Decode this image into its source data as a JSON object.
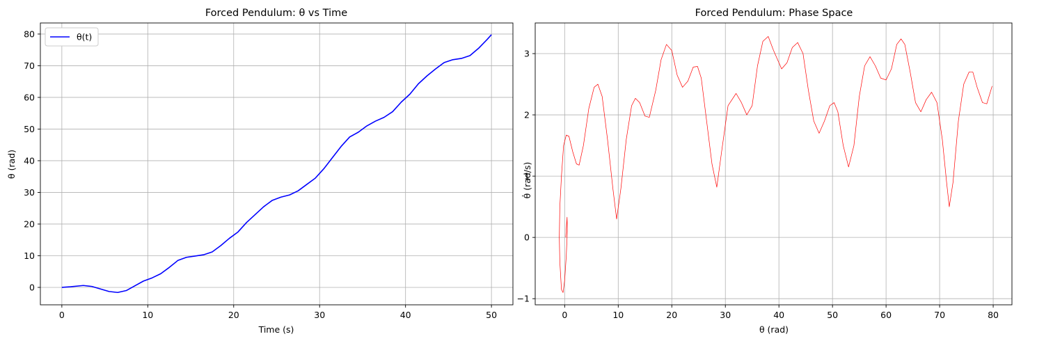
{
  "chart_data": [
    {
      "type": "line",
      "title": "Forced Pendulum: θ vs Time",
      "xlabel": "Time (s)",
      "ylabel": "θ (rad)",
      "xlim": [
        -2.5,
        52.5
      ],
      "ylim": [
        -5.5,
        83.5
      ],
      "xticks": [
        0,
        10,
        20,
        30,
        40,
        50
      ],
      "yticks": [
        0,
        10,
        20,
        30,
        40,
        50,
        60,
        70,
        80
      ],
      "grid": true,
      "legend": "top-left",
      "series": [
        {
          "name": "θ(t)",
          "color": "#0000ff",
          "points": [
            [
              0,
              0
            ],
            [
              1,
              0.2
            ],
            [
              2.5,
              0.6
            ],
            [
              3.5,
              0.3
            ],
            [
              4.5,
              -0.5
            ],
            [
              5.5,
              -1.3
            ],
            [
              6.5,
              -1.6
            ],
            [
              7.5,
              -1.0
            ],
            [
              8.5,
              0.5
            ],
            [
              9.5,
              2.0
            ],
            [
              10.5,
              3.0
            ],
            [
              11.5,
              4.3
            ],
            [
              12.5,
              6.3
            ],
            [
              13.5,
              8.5
            ],
            [
              14.5,
              9.5
            ],
            [
              15.5,
              9.9
            ],
            [
              16.5,
              10.3
            ],
            [
              17.5,
              11.2
            ],
            [
              18.5,
              13.2
            ],
            [
              19.5,
              15.5
            ],
            [
              20.5,
              17.5
            ],
            [
              21.5,
              20.5
            ],
            [
              22.5,
              23.0
            ],
            [
              23.5,
              25.5
            ],
            [
              24.5,
              27.5
            ],
            [
              25.5,
              28.5
            ],
            [
              26.5,
              29.2
            ],
            [
              27.5,
              30.5
            ],
            [
              28.5,
              32.5
            ],
            [
              29.5,
              34.5
            ],
            [
              30.5,
              37.5
            ],
            [
              31.5,
              41.0
            ],
            [
              32.5,
              44.5
            ],
            [
              33.5,
              47.5
            ],
            [
              34.5,
              49.0
            ],
            [
              35.5,
              51.0
            ],
            [
              36.5,
              52.5
            ],
            [
              37.5,
              53.7
            ],
            [
              38.5,
              55.5
            ],
            [
              39.5,
              58.5
            ],
            [
              40.5,
              61.0
            ],
            [
              41.5,
              64.3
            ],
            [
              42.5,
              66.8
            ],
            [
              43.5,
              69.0
            ],
            [
              44.5,
              71.0
            ],
            [
              45.5,
              71.9
            ],
            [
              46.5,
              72.3
            ],
            [
              47.5,
              73.2
            ],
            [
              48.5,
              75.5
            ],
            [
              49.5,
              78.3
            ],
            [
              50,
              79.8
            ]
          ]
        }
      ]
    },
    {
      "type": "line",
      "title": "Forced Pendulum: Phase Space",
      "xlabel": "θ (rad)",
      "ylabel": "θ̇ (rad/s)",
      "xlim": [
        -5.5,
        83.5
      ],
      "ylim": [
        -1.1,
        3.5
      ],
      "xticks": [
        0,
        10,
        20,
        30,
        40,
        50,
        60,
        70,
        80
      ],
      "yticks": [
        -1,
        0,
        1,
        2,
        3
      ],
      "grid": true,
      "series": [
        {
          "color": "#ff0000",
          "points": [
            [
              0.2,
              0.0
            ],
            [
              0.45,
              0.33
            ],
            [
              0.5,
              0.1
            ],
            [
              0.3,
              -0.3
            ],
            [
              0.0,
              -0.7
            ],
            [
              -0.3,
              -0.9
            ],
            [
              -0.6,
              -0.85
            ],
            [
              -0.9,
              -0.4
            ],
            [
              -1.0,
              0.0
            ],
            [
              -0.9,
              0.5
            ],
            [
              -0.6,
              1.0
            ],
            [
              -0.2,
              1.5
            ],
            [
              0.3,
              1.67
            ],
            [
              0.8,
              1.65
            ],
            [
              1.5,
              1.4
            ],
            [
              2.2,
              1.2
            ],
            [
              2.7,
              1.18
            ],
            [
              3.5,
              1.5
            ],
            [
              4.5,
              2.1
            ],
            [
              5.5,
              2.45
            ],
            [
              6.2,
              2.5
            ],
            [
              7.0,
              2.3
            ],
            [
              8.0,
              1.6
            ],
            [
              9.0,
              0.8
            ],
            [
              9.7,
              0.3
            ],
            [
              10.5,
              0.8
            ],
            [
              11.5,
              1.6
            ],
            [
              12.5,
              2.15
            ],
            [
              13.2,
              2.27
            ],
            [
              14.0,
              2.2
            ],
            [
              15.0,
              1.98
            ],
            [
              15.8,
              1.96
            ],
            [
              17.0,
              2.4
            ],
            [
              18.0,
              2.9
            ],
            [
              19.0,
              3.15
            ],
            [
              20.0,
              3.05
            ],
            [
              21.0,
              2.65
            ],
            [
              22.0,
              2.45
            ],
            [
              23.0,
              2.55
            ],
            [
              24.0,
              2.78
            ],
            [
              24.8,
              2.79
            ],
            [
              25.5,
              2.6
            ],
            [
              26.5,
              1.9
            ],
            [
              27.5,
              1.2
            ],
            [
              28.4,
              0.82
            ],
            [
              29.3,
              1.4
            ],
            [
              30.5,
              2.15
            ],
            [
              32.0,
              2.35
            ],
            [
              33.0,
              2.2
            ],
            [
              34.0,
              2.0
            ],
            [
              35.0,
              2.15
            ],
            [
              36.0,
              2.8
            ],
            [
              37.0,
              3.2
            ],
            [
              38.0,
              3.28
            ],
            [
              39.0,
              3.05
            ],
            [
              40.5,
              2.75
            ],
            [
              41.5,
              2.85
            ],
            [
              42.5,
              3.1
            ],
            [
              43.5,
              3.18
            ],
            [
              44.5,
              3.0
            ],
            [
              45.5,
              2.4
            ],
            [
              46.5,
              1.9
            ],
            [
              47.5,
              1.7
            ],
            [
              48.5,
              1.9
            ],
            [
              49.5,
              2.15
            ],
            [
              50.3,
              2.2
            ],
            [
              51.0,
              2.05
            ],
            [
              52.0,
              1.5
            ],
            [
              53.0,
              1.15
            ],
            [
              54.0,
              1.5
            ],
            [
              55.0,
              2.3
            ],
            [
              56.0,
              2.8
            ],
            [
              57.0,
              2.95
            ],
            [
              58.0,
              2.8
            ],
            [
              59.0,
              2.6
            ],
            [
              60.0,
              2.57
            ],
            [
              61.0,
              2.75
            ],
            [
              62.0,
              3.15
            ],
            [
              62.8,
              3.24
            ],
            [
              63.5,
              3.15
            ],
            [
              64.5,
              2.7
            ],
            [
              65.5,
              2.2
            ],
            [
              66.5,
              2.05
            ],
            [
              67.5,
              2.25
            ],
            [
              68.5,
              2.37
            ],
            [
              69.5,
              2.2
            ],
            [
              70.5,
              1.6
            ],
            [
              71.3,
              0.9
            ],
            [
              71.8,
              0.5
            ],
            [
              72.5,
              0.9
            ],
            [
              73.5,
              1.9
            ],
            [
              74.5,
              2.5
            ],
            [
              75.5,
              2.7
            ],
            [
              76.2,
              2.7
            ],
            [
              77.0,
              2.45
            ],
            [
              78.0,
              2.2
            ],
            [
              78.8,
              2.18
            ],
            [
              79.8,
              2.47
            ]
          ]
        }
      ]
    }
  ]
}
